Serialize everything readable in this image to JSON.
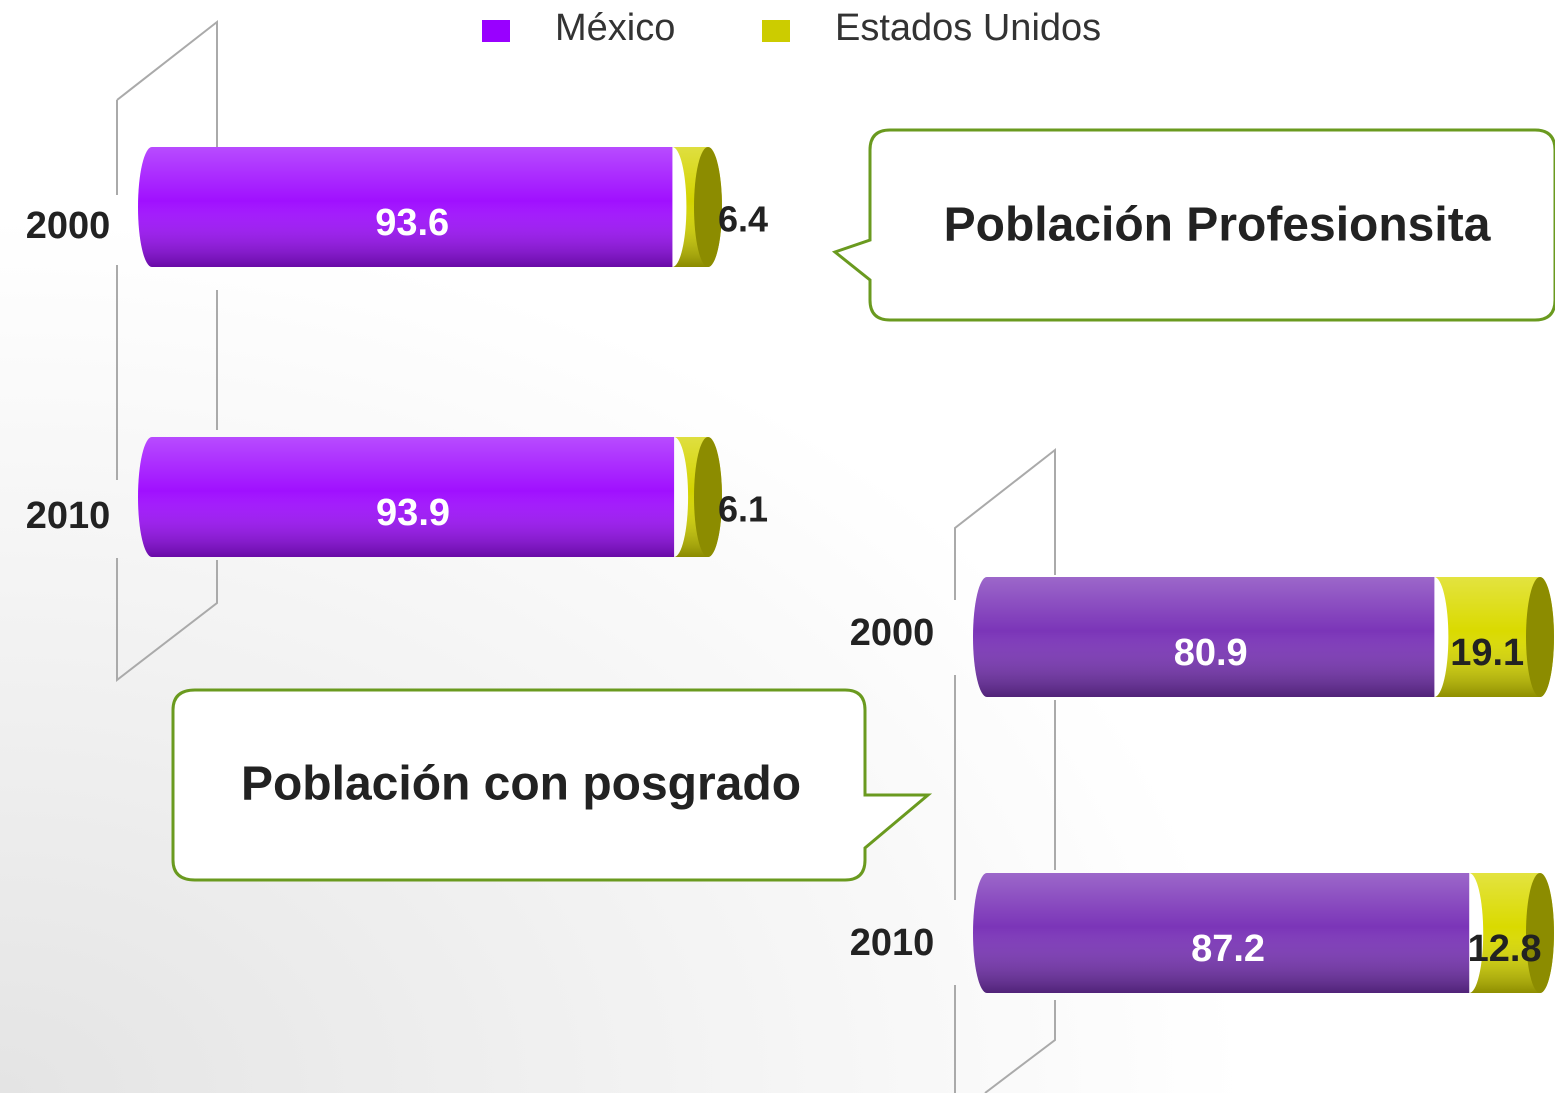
{
  "legend_names": [
    "México",
    "Estados Unidos"
  ],
  "chart_data": [
    {
      "type": "bar",
      "orientation": "horizontal",
      "stacked": true,
      "annotation": "Población Profesionsita",
      "categories": [
        "2000",
        "2010"
      ],
      "series": [
        {
          "color": "#a010ff",
          "values": [
            93.6,
            93.9
          ]
        },
        {
          "color": "#d4d400",
          "values": [
            6.4,
            6.1
          ]
        }
      ],
      "legend_colors": [
        "#9900ff",
        "#cccc00"
      ]
    },
    {
      "type": "bar",
      "orientation": "horizontal",
      "stacked": true,
      "annotation": "Población con posgrado",
      "categories": [
        "2000",
        "2010"
      ],
      "series": [
        {
          "color": "#7b35b8",
          "values": [
            80.9,
            87.2
          ]
        },
        {
          "color": "#dada00",
          "values": [
            19.1,
            12.8
          ]
        }
      ]
    }
  ]
}
